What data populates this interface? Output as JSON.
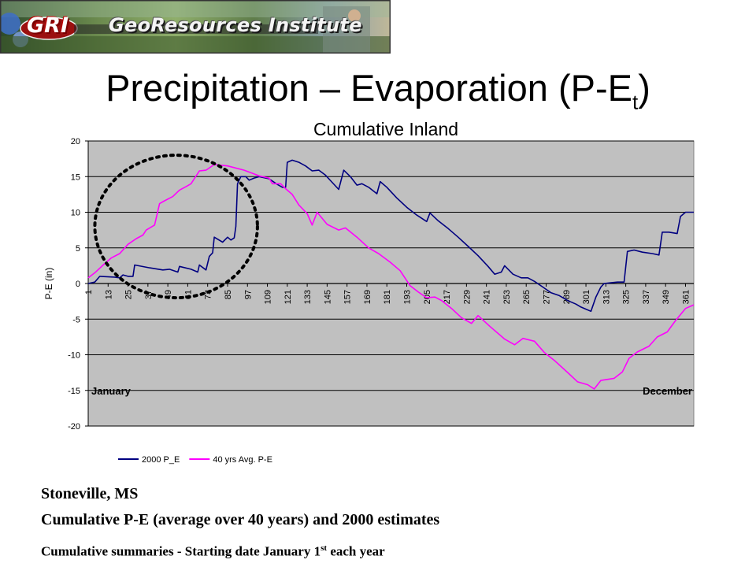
{
  "banner": {
    "logo": "GRI",
    "name": "GeoResources Institute"
  },
  "slide": {
    "title_main": "Precipitation – Evaporation (P-E",
    "title_sub": "t",
    "title_end": ")",
    "subtitle": "Cumulative Inland"
  },
  "captions": {
    "location": "Stoneville, MS",
    "description": "Cumulative P-E (average over 40 years) and 2000 estimates",
    "note_prefix": "Cumulative summaries - Starting date January 1",
    "note_sup": "st",
    "note_suffix": " each year"
  },
  "chart_data": {
    "type": "line",
    "xlabel": "",
    "ylabel": "P-E (in)",
    "xlim": [
      1,
      366
    ],
    "ylim": [
      -20,
      20
    ],
    "yticks": [
      20,
      15,
      10,
      5,
      0,
      -5,
      -10,
      -15,
      -20
    ],
    "xticks": [
      1,
      13,
      25,
      37,
      49,
      61,
      73,
      85,
      97,
      109,
      121,
      133,
      145,
      157,
      169,
      181,
      193,
      205,
      217,
      229,
      241,
      253,
      265,
      277,
      289,
      301,
      313,
      325,
      337,
      349,
      361
    ],
    "grid": true,
    "legend_position": "bottom",
    "annotations": [
      {
        "text": "January",
        "x": 1,
        "y": -15
      },
      {
        "text": "December",
        "x": 366,
        "y": -15
      }
    ],
    "highlight_circle": {
      "cx": 54,
      "cy": 8,
      "rx": 49,
      "ry": 10
    },
    "series": [
      {
        "name": "2000 P_E",
        "color": "#000080",
        "points": [
          [
            1,
            0
          ],
          [
            5,
            0.2
          ],
          [
            8,
            1.0
          ],
          [
            17,
            0.9
          ],
          [
            20,
            0.8
          ],
          [
            22,
            1.2
          ],
          [
            25,
            1.0
          ],
          [
            28,
            1.0
          ],
          [
            29,
            2.6
          ],
          [
            38,
            2.2
          ],
          [
            46,
            1.9
          ],
          [
            50,
            2.0
          ],
          [
            55,
            1.6
          ],
          [
            56,
            2.4
          ],
          [
            63,
            2.0
          ],
          [
            67,
            1.6
          ],
          [
            68,
            2.6
          ],
          [
            72,
            1.9
          ],
          [
            74,
            3.8
          ],
          [
            76,
            4.3
          ],
          [
            77,
            6.5
          ],
          [
            82,
            5.8
          ],
          [
            85,
            6.5
          ],
          [
            87,
            6.1
          ],
          [
            89,
            6.4
          ],
          [
            90,
            8.0
          ],
          [
            91,
            14.0
          ],
          [
            93,
            15.0
          ],
          [
            96,
            15.0
          ],
          [
            98,
            14.5
          ],
          [
            101,
            14.8
          ],
          [
            104,
            15.0
          ],
          [
            110,
            14.7
          ],
          [
            115,
            13.9
          ],
          [
            118,
            13.5
          ],
          [
            120,
            13.5
          ],
          [
            121,
            17.0
          ],
          [
            124,
            17.3
          ],
          [
            128,
            17.0
          ],
          [
            132,
            16.5
          ],
          [
            136,
            15.8
          ],
          [
            140,
            15.9
          ],
          [
            144,
            15.2
          ],
          [
            148,
            14.2
          ],
          [
            152,
            13.2
          ],
          [
            155,
            15.9
          ],
          [
            159,
            15.0
          ],
          [
            163,
            13.8
          ],
          [
            166,
            14.0
          ],
          [
            170,
            13.5
          ],
          [
            175,
            12.6
          ],
          [
            177,
            14.3
          ],
          [
            181,
            13.5
          ],
          [
            187,
            12.0
          ],
          [
            193,
            10.7
          ],
          [
            199,
            9.6
          ],
          [
            205,
            8.7
          ],
          [
            207,
            9.9
          ],
          [
            212,
            8.8
          ],
          [
            218,
            7.7
          ],
          [
            224,
            6.5
          ],
          [
            230,
            5.2
          ],
          [
            236,
            3.9
          ],
          [
            242,
            2.4
          ],
          [
            246,
            1.3
          ],
          [
            250,
            1.6
          ],
          [
            252,
            2.5
          ],
          [
            257,
            1.3
          ],
          [
            262,
            0.8
          ],
          [
            266,
            0.8
          ],
          [
            270,
            0.3
          ],
          [
            275,
            -0.5
          ],
          [
            280,
            -1.3
          ],
          [
            285,
            -1.7
          ],
          [
            290,
            -2.4
          ],
          [
            295,
            -2.9
          ],
          [
            298,
            -3.3
          ],
          [
            301,
            -3.6
          ],
          [
            304,
            -3.9
          ],
          [
            307,
            -1.9
          ],
          [
            310,
            -0.5
          ],
          [
            312,
            0
          ],
          [
            316,
            0.1
          ],
          [
            320,
            0.2
          ],
          [
            324,
            0.2
          ],
          [
            326,
            4.5
          ],
          [
            330,
            4.7
          ],
          [
            335,
            4.4
          ],
          [
            341,
            4.2
          ],
          [
            345,
            4.0
          ],
          [
            347,
            7.2
          ],
          [
            351,
            7.2
          ],
          [
            356,
            7.0
          ],
          [
            358,
            9.4
          ],
          [
            361,
            10.0
          ],
          [
            366,
            10.0
          ]
        ]
      },
      {
        "name": "40 yrs Avg. P-E",
        "color": "#ff00ff",
        "points": [
          [
            1,
            0.8
          ],
          [
            5,
            1.5
          ],
          [
            10,
            2.6
          ],
          [
            15,
            3.6
          ],
          [
            20,
            4.2
          ],
          [
            25,
            5.5
          ],
          [
            30,
            6.3
          ],
          [
            34,
            6.8
          ],
          [
            36,
            7.5
          ],
          [
            41,
            8.2
          ],
          [
            44,
            11.2
          ],
          [
            47,
            11.6
          ],
          [
            52,
            12.2
          ],
          [
            56,
            13.1
          ],
          [
            60,
            13.6
          ],
          [
            63,
            14.0
          ],
          [
            68,
            15.8
          ],
          [
            72,
            15.9
          ],
          [
            77,
            16.7
          ],
          [
            85,
            16.5
          ],
          [
            95,
            15.9
          ],
          [
            104,
            15.1
          ],
          [
            110,
            14.8
          ],
          [
            112,
            14.0
          ],
          [
            117,
            14.0
          ],
          [
            120,
            13.3
          ],
          [
            124,
            12.5
          ],
          [
            128,
            11.0
          ],
          [
            133,
            9.8
          ],
          [
            136,
            8.2
          ],
          [
            139,
            10.0
          ],
          [
            145,
            8.3
          ],
          [
            152,
            7.5
          ],
          [
            156,
            7.8
          ],
          [
            163,
            6.5
          ],
          [
            170,
            5.0
          ],
          [
            176,
            4.2
          ],
          [
            183,
            3.0
          ],
          [
            189,
            1.8
          ],
          [
            195,
            -0.3
          ],
          [
            200,
            -1.2
          ],
          [
            205,
            -2.0
          ],
          [
            210,
            -1.9
          ],
          [
            214,
            -2.4
          ],
          [
            220,
            -3.5
          ],
          [
            226,
            -4.8
          ],
          [
            232,
            -5.6
          ],
          [
            236,
            -4.5
          ],
          [
            243,
            -6.0
          ],
          [
            252,
            -7.8
          ],
          [
            258,
            -8.6
          ],
          [
            263,
            -7.7
          ],
          [
            270,
            -8.1
          ],
          [
            276,
            -9.7
          ],
          [
            282,
            -10.8
          ],
          [
            290,
            -12.5
          ],
          [
            296,
            -13.8
          ],
          [
            302,
            -14.2
          ],
          [
            306,
            -14.8
          ],
          [
            310,
            -13.6
          ],
          [
            318,
            -13.3
          ],
          [
            323,
            -12.4
          ],
          [
            327,
            -10.5
          ],
          [
            332,
            -9.6
          ],
          [
            339,
            -8.8
          ],
          [
            344,
            -7.5
          ],
          [
            350,
            -6.8
          ],
          [
            355,
            -5.2
          ],
          [
            361,
            -3.5
          ],
          [
            366,
            -3.0
          ]
        ]
      }
    ]
  }
}
